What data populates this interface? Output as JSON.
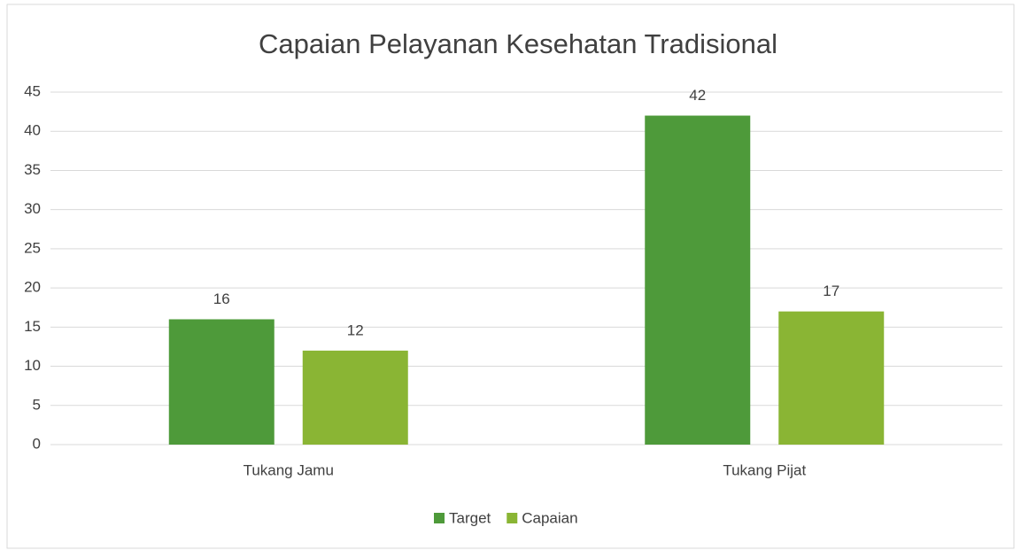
{
  "chart_data": {
    "type": "bar",
    "title": "Capaian Pelayanan Kesehatan Tradisional",
    "categories": [
      "Tukang Jamu",
      "Tukang Pijat"
    ],
    "series": [
      {
        "name": "Target",
        "color": "#4e9a3a",
        "values": [
          16,
          42
        ]
      },
      {
        "name": "Capaian",
        "color": "#8ab534",
        "values": [
          12,
          17
        ]
      }
    ],
    "ylim": [
      0,
      45
    ],
    "yticks": [
      0,
      5,
      10,
      15,
      20,
      25,
      30,
      35,
      40,
      45
    ],
    "grid": true,
    "legend": "bottom"
  }
}
